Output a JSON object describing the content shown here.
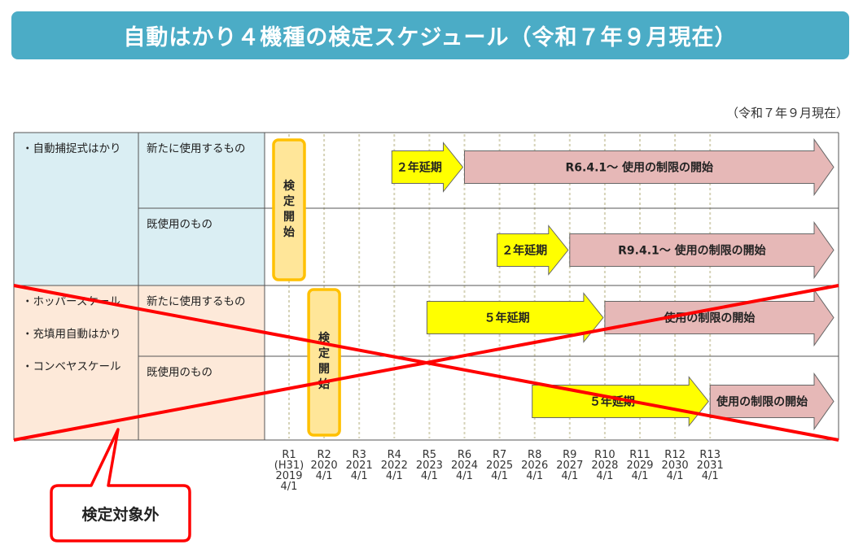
{
  "title": "自動はかり４機種の検定スケジュール（令和７年９月現在）",
  "as_of": "（令和７年９月現在）",
  "groups": [
    {
      "names": [
        "・自動捕捉式はかり"
      ],
      "color": "#daeef3",
      "rows": [
        {
          "label": "新たに使用するもの",
          "delay": {
            "from": "R4",
            "to": "R6",
            "label": "２年延期"
          },
          "restriction": {
            "from": "R6",
            "label": "R6.4.1～  使用の制限の開始"
          }
        },
        {
          "label": "既使用のもの",
          "delay": {
            "from": "R7",
            "to": "R9",
            "label": "２年延期"
          },
          "restriction": {
            "from": "R9",
            "label": "R9.4.1～  使用の制限の開始"
          }
        }
      ],
      "inspection_start": {
        "at": "R1",
        "label": "検定開始"
      }
    },
    {
      "names": [
        "・ホッパースケール",
        "・充填用自動はかり",
        "・コンベヤスケール"
      ],
      "color": "#fde9d9",
      "rows": [
        {
          "label": "新たに使用するもの",
          "delay": {
            "from": "R5",
            "to": "R10",
            "label": "５年延期"
          },
          "restriction": {
            "from": "R10",
            "label": "使用の制限の開始"
          }
        },
        {
          "label": "既使用のもの",
          "delay": {
            "from": "R8",
            "to": "R13",
            "label": "５年延期"
          },
          "restriction": {
            "from": "R13",
            "label": "使用の制限の開始"
          }
        }
      ],
      "inspection_start": {
        "at": "R2",
        "label": "検定開始"
      },
      "crossed_out": true
    }
  ],
  "timeline": [
    {
      "id": "R1",
      "label": "R1\n(H31)\n2019\n4/1"
    },
    {
      "id": "R2",
      "label": "R2\n2020\n4/1"
    },
    {
      "id": "R3",
      "label": "R3\n2021\n4/1"
    },
    {
      "id": "R4",
      "label": "R4\n2022\n4/1"
    },
    {
      "id": "R5",
      "label": "R5\n2023\n4/1"
    },
    {
      "id": "R6",
      "label": "R6\n2024\n4/1"
    },
    {
      "id": "R7",
      "label": "R7\n2025\n4/1"
    },
    {
      "id": "R8",
      "label": "R8\n2026\n4/1"
    },
    {
      "id": "R9",
      "label": "R9\n2027\n4/1"
    },
    {
      "id": "R10",
      "label": "R10\n2028\n4/1"
    },
    {
      "id": "R11",
      "label": "R11\n2029\n4/1"
    },
    {
      "id": "R12",
      "label": "R12\n2030\n4/1"
    },
    {
      "id": "R13",
      "label": "R13\n2031\n4/1"
    }
  ],
  "callout": "検定対象外",
  "colors": {
    "title_bar": "#4bacc6",
    "delay_arrow": "#ffff00",
    "restriction_arrow": "#e6b8b7",
    "inspection_box": "#ffe699",
    "inspection_border": "#ffc000",
    "cross": "#ff0000"
  }
}
